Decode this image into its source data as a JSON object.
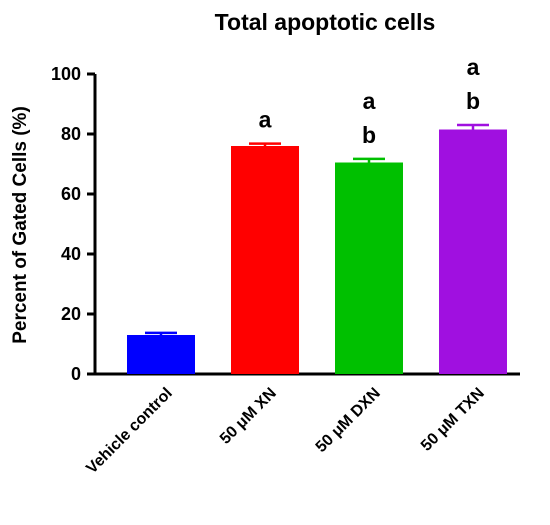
{
  "chart_data": {
    "type": "bar",
    "title": "Total apoptotic cells",
    "ylabel": "Percent of Gated Cells (%)",
    "xlabel": "",
    "ylim": [
      0,
      100
    ],
    "yticks": [
      "0",
      "20",
      "40",
      "60",
      "80",
      "100"
    ],
    "grid": false,
    "categories": [
      "Vehicle control",
      "50 μM XN",
      "50 μM DXN",
      "50 μM TXN"
    ],
    "values": [
      13,
      76,
      70.5,
      81.5
    ],
    "error": [
      0.7,
      0.8,
      1.2,
      1.5
    ],
    "colors": [
      "#0000ff",
      "#ff0000",
      "#00c000",
      "#a010e0"
    ],
    "significance": [
      [],
      [
        "a"
      ],
      [
        "a",
        "b"
      ],
      [
        "a",
        "b"
      ]
    ]
  }
}
